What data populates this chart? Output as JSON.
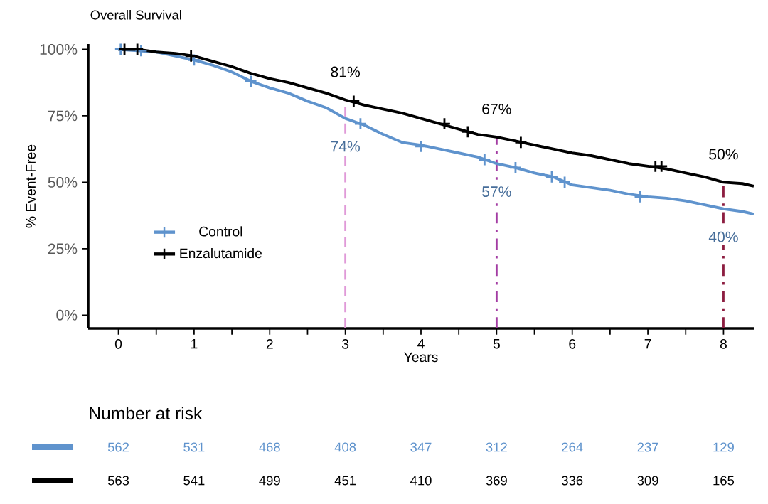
{
  "chart_data": [
    {
      "type": "line",
      "title": "Overall Survival",
      "xlabel": "Years",
      "ylabel": "% Event-Free",
      "legend": "left",
      "line_style": "solid",
      "x": [
        0,
        0.25,
        0.5,
        0.75,
        1,
        1.25,
        1.5,
        1.75,
        2,
        2.25,
        2.5,
        2.75,
        3,
        3.25,
        3.5,
        3.75,
        4,
        4.25,
        4.5,
        4.75,
        5,
        5.25,
        5.5,
        5.75,
        6,
        6.25,
        6.5,
        6.75,
        7,
        7.25,
        7.5,
        7.75,
        8,
        8.25,
        8.4
      ],
      "xlim": [
        -0.4,
        8.4
      ],
      "xticks": [
        0,
        {
          "value": 0.5,
          "label": null
        },
        1,
        {
          "value": 1.5,
          "label": null
        },
        2,
        {
          "value": 2.5,
          "label": null
        },
        3,
        {
          "value": 3.5,
          "label": null
        },
        4,
        {
          "value": 4.5,
          "label": null
        },
        5,
        {
          "value": 5.5,
          "label": null
        },
        6,
        {
          "value": 6.5,
          "label": null
        },
        7,
        {
          "value": 7.5,
          "label": null
        },
        8
      ],
      "ylim": [
        -5,
        102
      ],
      "yticks": [
        {
          "value": 0,
          "label": "0%"
        },
        {
          "value": 25,
          "label": "25%"
        },
        {
          "value": 50,
          "label": "50%"
        },
        {
          "value": 75,
          "label": "75%"
        },
        {
          "value": 100,
          "label": "100%"
        }
      ],
      "series": [
        {
          "name": "Control",
          "color": "#5f93cd",
          "values": [
            100,
            99.5,
            99,
            97.5,
            96,
            94,
            91.5,
            88,
            85.5,
            83.5,
            80.5,
            78,
            74,
            71.5,
            68,
            65,
            64,
            62.5,
            61,
            59.5,
            57,
            55.5,
            53.5,
            52,
            49,
            48,
            47,
            45.5,
            44.5,
            44,
            43,
            41.5,
            40,
            39,
            38
          ],
          "value_labels": [
            null,
            null,
            null,
            null,
            null,
            null,
            null,
            null,
            null,
            null,
            null,
            null,
            "74%",
            null,
            null,
            null,
            null,
            null,
            null,
            null,
            "57%",
            null,
            null,
            null,
            null,
            null,
            null,
            null,
            null,
            null,
            null,
            null,
            "40%",
            null,
            null
          ]
        },
        {
          "name": "Enzalutamide",
          "color": "#000000",
          "values": [
            100,
            100,
            99,
            98.5,
            97.5,
            95.5,
            93.5,
            91,
            89,
            87.5,
            85.5,
            83.5,
            81,
            79,
            77.5,
            76,
            74,
            72,
            70,
            68,
            67,
            65.5,
            64,
            62.5,
            61,
            60,
            58.5,
            57,
            56,
            55,
            53.5,
            52,
            50,
            49.5,
            48.5
          ],
          "value_labels": [
            null,
            null,
            null,
            null,
            null,
            null,
            null,
            null,
            null,
            null,
            null,
            null,
            "81%",
            null,
            null,
            null,
            null,
            null,
            null,
            null,
            "67%",
            null,
            null,
            null,
            null,
            null,
            null,
            null,
            null,
            null,
            null,
            null,
            "50%",
            null,
            null
          ]
        },
        {
          "type": "scatter",
          "marker": "cross",
          "color": "#5f93cd",
          "x": [
            0.03,
            0.08,
            0.3,
            1.0,
            1.75,
            3.2,
            4.0,
            4.84,
            5.25,
            5.73,
            5.9,
            6.9
          ],
          "values": [
            100,
            null,
            99.5,
            96,
            88,
            72,
            63.5,
            58.5,
            55.5,
            52,
            50,
            44.5
          ]
        },
        {
          "type": "scatter",
          "marker": "cross",
          "color": "#000000",
          "x": [
            0.08,
            0.25,
            0.96,
            3.11,
            4.31,
            4.62,
            5.32,
            7.1,
            7.18
          ],
          "values": [
            100,
            100,
            97.5,
            80.5,
            72,
            69,
            65,
            56,
            56
          ]
        }
      ],
      "ref_lines": [
        {
          "axis": "x",
          "value": 3,
          "color": "#e09ad8",
          "line_style": "dashed"
        },
        {
          "axis": "x",
          "value": 5,
          "color": "#a33ca3",
          "line_style": "dashdot"
        },
        {
          "axis": "x",
          "value": 8,
          "color": "#8c1d40",
          "line_style": "dashdot"
        }
      ]
    },
    {
      "type": "other",
      "title": "Number at risk",
      "annotations": [
        "562",
        "531",
        "468",
        "408",
        "347",
        "312",
        "264",
        "237",
        "129",
        "563",
        "541",
        "499",
        "451",
        "410",
        "369",
        "336",
        "309",
        "165"
      ]
    }
  ]
}
